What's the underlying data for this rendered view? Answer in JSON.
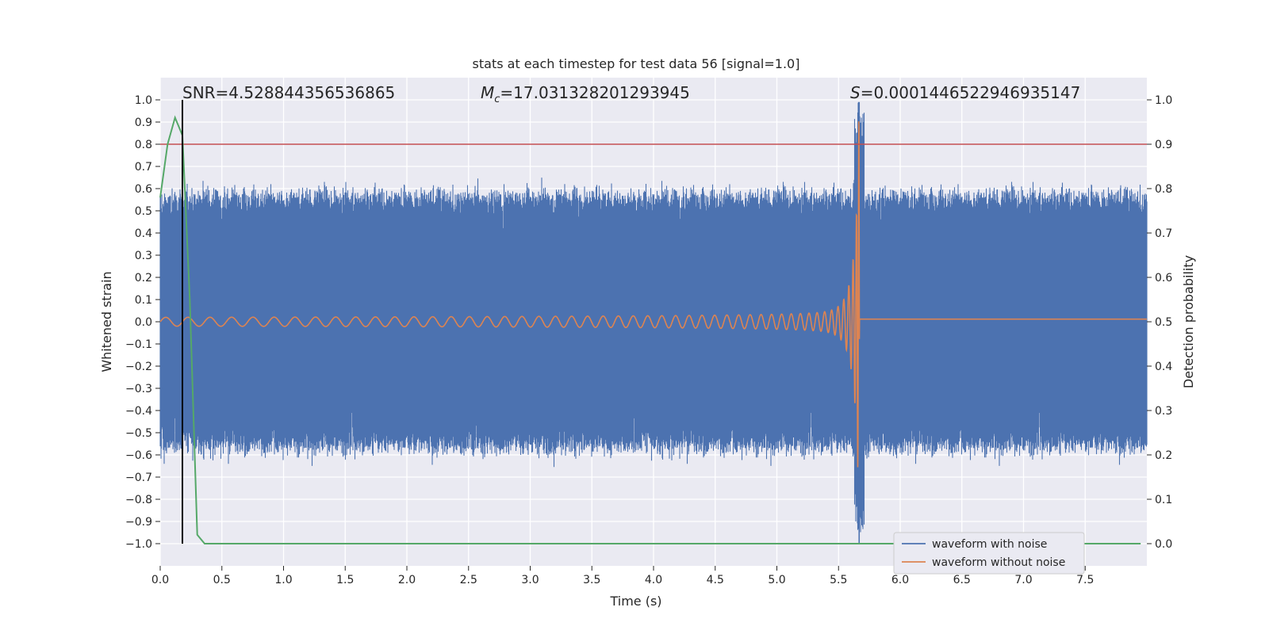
{
  "chart_data": {
    "type": "line",
    "title": "stats at each timestep for test data 56 [signal=1.0]",
    "xlabel": "Time (s)",
    "ylabel": "Whitened strain",
    "y2label": "Detection probability",
    "xlim": [
      0.0,
      8.0
    ],
    "ylim": [
      -1.1,
      1.1
    ],
    "y2lim": [
      -0.05,
      1.05
    ],
    "xticks": [
      "0.0",
      "0.5",
      "1.0",
      "1.5",
      "2.0",
      "2.5",
      "3.0",
      "3.5",
      "4.0",
      "4.5",
      "5.0",
      "5.5",
      "6.0",
      "6.5",
      "7.0",
      "7.5"
    ],
    "yticks": [
      "1.0",
      "0.9",
      "0.8",
      "0.7",
      "0.6",
      "0.5",
      "0.4",
      "0.3",
      "0.2",
      "0.1",
      "0.0",
      "−0.1",
      "−0.2",
      "−0.3",
      "−0.4",
      "−0.5",
      "−0.6",
      "−0.7",
      "−0.8",
      "−0.9",
      "−1.0"
    ],
    "y2ticks": [
      "1.0",
      "0.9",
      "0.8",
      "0.7",
      "0.6",
      "0.5",
      "0.4",
      "0.3",
      "0.2",
      "0.1",
      "0.0"
    ],
    "grid": true,
    "legend_position": "lower-right",
    "annotations": {
      "snr": "SNR=4.528844356536865",
      "mc_symbol": "M",
      "mc_sub": "c",
      "mc_value": "=17.031328201293945",
      "s_symbol": "S",
      "s_value": "=0.0001446522946935147"
    },
    "threshold": {
      "y2": 0.9,
      "color": "#c44e52"
    },
    "marker_line": {
      "x": 0.18,
      "color": "#000000"
    },
    "merger_time": 5.67,
    "series": [
      {
        "name": "waveform with noise",
        "color": "#4c72b0",
        "kind": "noise",
        "envelope": 0.55
      },
      {
        "name": "waveform without noise",
        "color": "#dd8452",
        "kind": "chirp",
        "start_amplitude": 0.02,
        "peak_amplitude": 0.97
      },
      {
        "color": "#55a868",
        "kind": "probability",
        "x": [
          0.0,
          0.06,
          0.12,
          0.18,
          0.24,
          0.3,
          0.36,
          0.5,
          1.0,
          2.0,
          3.0,
          4.0,
          5.0,
          6.0,
          7.0,
          7.95
        ],
        "y": [
          0.78,
          0.9,
          0.96,
          0.92,
          0.55,
          0.02,
          0.0,
          0.0,
          0.0,
          0.0,
          0.0,
          0.0,
          0.0,
          0.0,
          0.0,
          0.0
        ]
      }
    ]
  }
}
